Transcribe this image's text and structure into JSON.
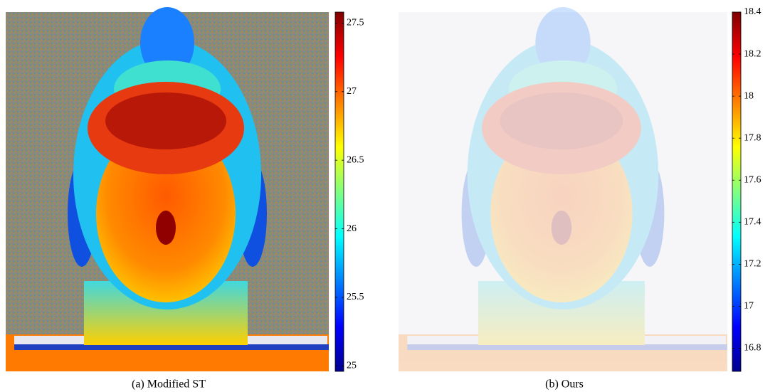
{
  "chart_data": [
    {
      "type": "heatmap",
      "caption": "(a) Modified ST",
      "colormap": "jet",
      "clim": [
        24.96,
        27.58
      ],
      "cticks": [
        25,
        25.5,
        26,
        26.5,
        27,
        27.5
      ]
    },
    {
      "type": "heatmap",
      "caption": "(b) Ours",
      "colormap": "jet",
      "clim": [
        16.69,
        18.4
      ],
      "cticks": [
        16.8,
        17,
        17.2,
        17.4,
        17.6,
        17.8,
        18,
        18.2,
        18.4
      ]
    }
  ]
}
